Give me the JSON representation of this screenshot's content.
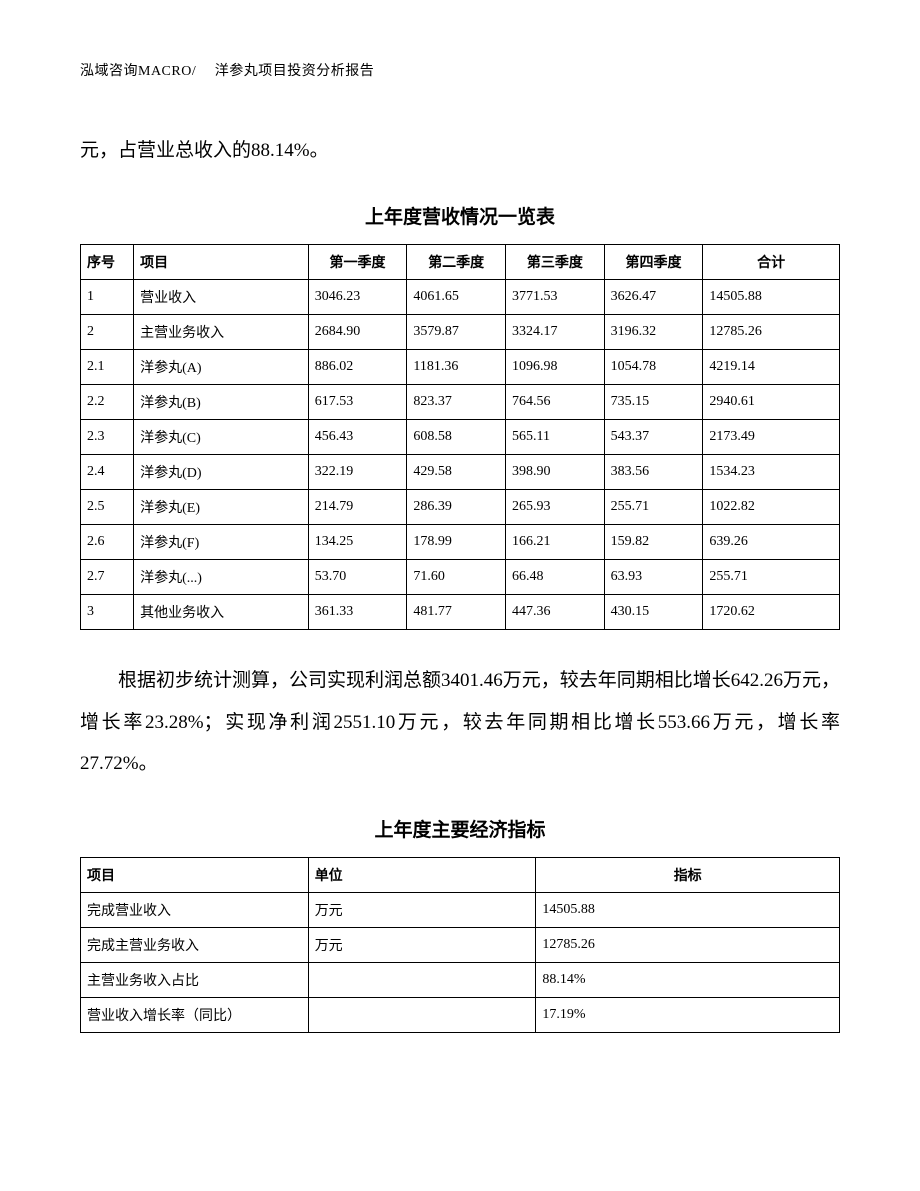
{
  "header": "泓域咨询MACRO/　 洋参丸项目投资分析报告",
  "intro": "元，占营业总收入的88.14%。",
  "table1": {
    "title": "上年度营收情况一览表",
    "columns": [
      "序号",
      "项目",
      "第一季度",
      "第二季度",
      "第三季度",
      "第四季度",
      "合计"
    ],
    "rows": [
      [
        "1",
        "营业收入",
        "3046.23",
        "4061.65",
        "3771.53",
        "3626.47",
        "14505.88"
      ],
      [
        "2",
        "主营业务收入",
        "2684.90",
        "3579.87",
        "3324.17",
        "3196.32",
        "12785.26"
      ],
      [
        "2.1",
        "洋参丸(A)",
        "886.02",
        "1181.36",
        "1096.98",
        "1054.78",
        "4219.14"
      ],
      [
        "2.2",
        "洋参丸(B)",
        "617.53",
        "823.37",
        "764.56",
        "735.15",
        "2940.61"
      ],
      [
        "2.3",
        "洋参丸(C)",
        "456.43",
        "608.58",
        "565.11",
        "543.37",
        "2173.49"
      ],
      [
        "2.4",
        "洋参丸(D)",
        "322.19",
        "429.58",
        "398.90",
        "383.56",
        "1534.23"
      ],
      [
        "2.5",
        "洋参丸(E)",
        "214.79",
        "286.39",
        "265.93",
        "255.71",
        "1022.82"
      ],
      [
        "2.6",
        "洋参丸(F)",
        "134.25",
        "178.99",
        "166.21",
        "159.82",
        "639.26"
      ],
      [
        "2.7",
        "洋参丸(...)",
        "53.70",
        "71.60",
        "66.48",
        "63.93",
        "255.71"
      ],
      [
        "3",
        "其他业务收入",
        "361.33",
        "481.77",
        "447.36",
        "430.15",
        "1720.62"
      ]
    ]
  },
  "para2": "根据初步统计测算，公司实现利润总额3401.46万元，较去年同期相比增长642.26万元，增长率23.28%；实现净利润2551.10万元，较去年同期相比增长553.66万元，增长率27.72%。",
  "table2": {
    "title": "上年度主要经济指标",
    "columns": [
      "项目",
      "单位",
      "指标"
    ],
    "rows": [
      [
        "完成营业收入",
        "万元",
        "14505.88"
      ],
      [
        "完成主营业务收入",
        "万元",
        "12785.26"
      ],
      [
        "主营业务收入占比",
        "",
        "88.14%"
      ],
      [
        "营业收入增长率（同比）",
        "",
        "17.19%"
      ]
    ]
  }
}
